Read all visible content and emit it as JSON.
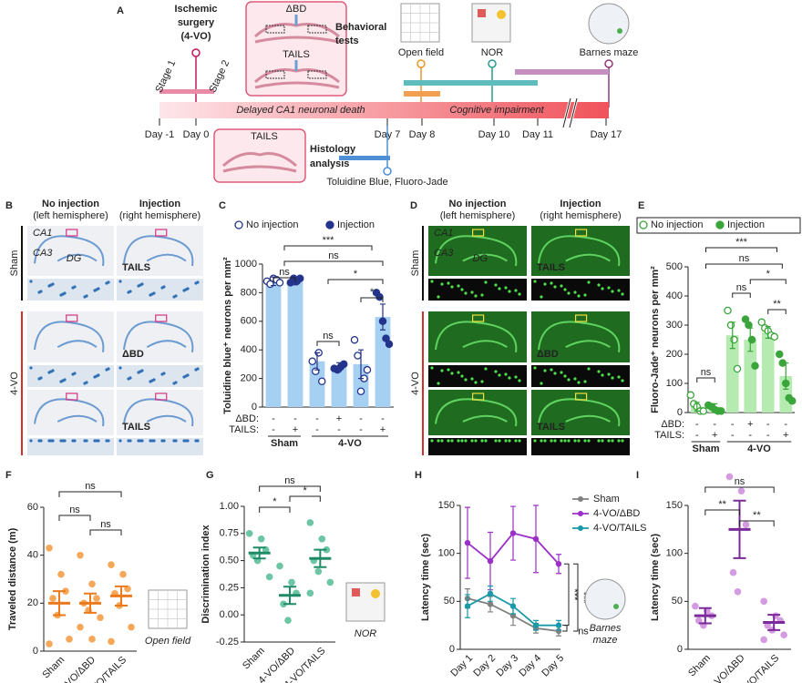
{
  "panel_labels": [
    "A",
    "B",
    "C",
    "D",
    "E",
    "F",
    "G",
    "H",
    "I"
  ],
  "panel_a": {
    "surgery": [
      "Ischemic",
      "surgery",
      "(4-VO)"
    ],
    "stages": [
      "Stage 1",
      "Stage 2"
    ],
    "injections": [
      "ΔBD",
      "TAILS"
    ],
    "behavior": [
      "Behavioral",
      "tests"
    ],
    "tests": [
      "Open field",
      "NOR",
      "Barnes maze"
    ],
    "phases": [
      "Delayed CA1 neuronal death",
      "Cognitive impairment"
    ],
    "days": [
      "Day -1",
      "Day 0",
      "Day 7",
      "Day 8",
      "Day 10",
      "Day 11",
      "Day 17"
    ],
    "histology_injection": "TAILS",
    "histology": [
      "Histology",
      "analysis"
    ],
    "stains": "Toluidine Blue, Fluoro-Jade"
  },
  "panel_b": {
    "columns": [
      [
        "No injection",
        "(left hemisphere)"
      ],
      [
        "Injection",
        "(right hemisphere)"
      ]
    ],
    "regions": [
      "CA1",
      "CA3",
      "DG"
    ],
    "groups": [
      "Sham",
      "4-VO"
    ],
    "treatments": [
      "TAILS",
      "ΔBD",
      "TAILS"
    ]
  },
  "panel_d": {
    "columns": [
      [
        "No injection",
        "(left hemisphere)"
      ],
      [
        "Injection",
        "(right hemisphere)"
      ]
    ],
    "regions": [
      "CA1",
      "CA3",
      "DG"
    ],
    "groups": [
      "Sham",
      "4-VO"
    ],
    "treatments": [
      "TAILS",
      "ΔBD",
      "TAILS"
    ]
  },
  "chart_data": [
    {
      "type": "bar",
      "y_label": "Toluidine blue⁺ neurons per mm²",
      "ylim": [
        0,
        1000
      ],
      "yticks": [
        0,
        200,
        400,
        600,
        800,
        1000
      ],
      "values": [
        880,
        880,
        320,
        280,
        300,
        630
      ],
      "errors": [
        30,
        25,
        60,
        30,
        100,
        90
      ],
      "points": [
        [
          880,
          860,
          900,
          890,
          870
        ],
        [
          870,
          900,
          880,
          900
        ],
        [
          320,
          250,
          380,
          180
        ],
        [
          270,
          260,
          280,
          300
        ],
        [
          470,
          360,
          110,
          200,
          260
        ],
        [
          800,
          770,
          600,
          480,
          440
        ]
      ],
      "color": "#a6d0f2",
      "marker_color": "#24348c",
      "legend": [
        "No injection",
        "Injection"
      ],
      "rows": [
        {
          "label": "ΔBD:",
          "marks": [
            "-",
            "-",
            "-",
            "+",
            "-",
            "-"
          ]
        },
        {
          "label": "TAILS:",
          "marks": [
            "-",
            "+",
            "-",
            "-",
            "-",
            "+"
          ]
        }
      ],
      "groups": [
        "Sham",
        "4-VO"
      ],
      "annotations": [
        "ns",
        "***",
        "ns",
        "*",
        "*",
        "ns"
      ]
    },
    {
      "type": "bar",
      "y_label": "Fluoro-Jade⁺ neurons per mm²",
      "ylim": [
        0,
        500
      ],
      "yticks": [
        0,
        100,
        200,
        300,
        400,
        500
      ],
      "values": [
        20,
        20,
        265,
        250,
        275,
        125
      ],
      "errors": [
        15,
        10,
        45,
        40,
        20,
        45
      ],
      "points": [
        [
          60,
          30,
          20,
          5,
          5
        ],
        [
          25,
          20,
          10,
          5,
          5
        ],
        [
          350,
          300,
          250,
          150
        ],
        [
          320,
          300,
          250,
          160
        ],
        [
          310,
          290,
          280,
          265,
          260
        ],
        [
          200,
          170,
          100,
          50,
          40
        ]
      ],
      "color": "#b5eab0",
      "marker_color": "#3aa53a",
      "legend": [
        "No injection",
        "Injection"
      ],
      "rows": [
        {
          "label": "ΔBD:",
          "marks": [
            "-",
            "-",
            "-",
            "+",
            "-",
            "-"
          ]
        },
        {
          "label": "TAILS:",
          "marks": [
            "-",
            "+",
            "-",
            "-",
            "-",
            "+"
          ]
        }
      ],
      "groups": [
        "Sham",
        "4-VO"
      ],
      "annotations": [
        "ns",
        "***",
        "ns",
        "*",
        "ns",
        "**"
      ]
    },
    {
      "type": "strip",
      "y_label": "Traveled distance (m)",
      "ylim": [
        0,
        60
      ],
      "yticks": [
        0,
        20,
        40,
        60
      ],
      "categories": [
        "Sham",
        "4-VO/ΔBD",
        "4-VO/TAILS"
      ],
      "values": [
        20,
        20,
        23
      ],
      "errors": [
        5,
        4,
        4
      ],
      "points": [
        [
          43,
          32,
          25,
          22,
          15,
          5,
          3
        ],
        [
          40,
          28,
          22,
          20,
          17,
          14,
          10,
          5
        ],
        [
          36,
          32,
          26,
          24,
          19,
          10,
          4
        ]
      ],
      "color": "#ec7a1c",
      "point_color": "#f5a85a",
      "annotations": [
        "ns",
        "ns",
        "ns"
      ],
      "icon_label": [
        "Open field"
      ]
    },
    {
      "type": "strip",
      "y_label": "Discrimination index",
      "ylim": [
        -0.25,
        1
      ],
      "yticks": [
        -0.25,
        {
          "value": 0,
          "label": "0.00"
        },
        0.25,
        {
          "value": 0.5,
          "label": "0.50"
        },
        0.75,
        {
          "value": 1,
          "label": "1.00"
        }
      ],
      "categories": [
        "Sham",
        "4-VO/ΔBD",
        "4-VO/TAILS"
      ],
      "values": [
        0.57,
        0.18,
        0.52
      ],
      "errors": [
        0.05,
        0.08,
        0.08
      ],
      "points": [
        [
          0.75,
          0.7,
          0.6,
          0.55,
          0.5,
          0.35
        ],
        [
          0.45,
          0.3,
          0.2,
          0.1,
          -0.05
        ],
        [
          0.85,
          0.7,
          0.6,
          0.5,
          0.4,
          0.3,
          0.2
        ]
      ],
      "color": "#1f8a66",
      "point_color": "#6cc6a4",
      "annotations": [
        "ns",
        "*",
        "*"
      ],
      "icon_label": [
        "NOR"
      ]
    },
    {
      "type": "line",
      "y_label": "Latency time (sec)",
      "ylim": [
        0,
        150
      ],
      "yticks": [
        0,
        50,
        100,
        150
      ],
      "x": [
        "Day 1",
        "Day 2",
        "Day 3",
        "Day 4",
        "Day 5"
      ],
      "series": [
        {
          "name": "Sham",
          "color": "#808080",
          "values": [
            53,
            47,
            35,
            22,
            19
          ],
          "errors": [
            10,
            8,
            10,
            5,
            5
          ]
        },
        {
          "name": "4-VO/ΔBD",
          "color": "#9b30c8",
          "values": [
            111,
            92,
            121,
            115,
            89
          ],
          "errors": [
            37,
            30,
            28,
            35,
            10
          ]
        },
        {
          "name": "4-VO/TAILS",
          "color": "#1a9aa8",
          "values": [
            45,
            58,
            45,
            25,
            25
          ],
          "errors": [
            12,
            8,
            8,
            5,
            5
          ]
        }
      ],
      "annotations": [
        "***",
        "***",
        "ns"
      ],
      "icon_label": [
        "Barnes",
        "maze"
      ]
    },
    {
      "type": "strip",
      "y_label": "Latency time (sec)",
      "ylim": [
        0,
        150
      ],
      "yticks": [
        0,
        50,
        100,
        150
      ],
      "categories": [
        "Sham",
        "4-VO/ΔBD",
        "4-VO/TAILS"
      ],
      "values": [
        35,
        125,
        28
      ],
      "errors": [
        8,
        30,
        8
      ],
      "points": [
        [
          45,
          40,
          35,
          30,
          25
        ],
        [
          180,
          165,
          130,
          80,
          60
        ],
        [
          50,
          35,
          30,
          25,
          20,
          15,
          10
        ]
      ],
      "color": "#7a2a9a",
      "point_color": "#d49be0",
      "annotations": [
        "ns",
        "**",
        "**"
      ]
    }
  ]
}
